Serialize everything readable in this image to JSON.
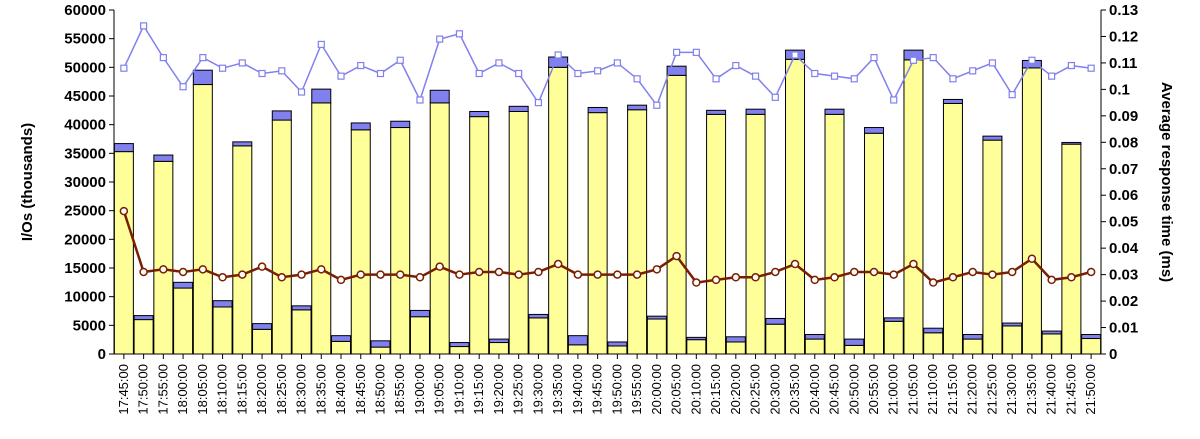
{
  "chart_data": {
    "type": "bar",
    "title": "",
    "xlabel": "",
    "ylabel": "I/Os (thousands)",
    "y2label": "Average response time (ms)",
    "ylim": [
      0,
      60000
    ],
    "y2lim": [
      0,
      0.13
    ],
    "yticks": [
      0,
      5000,
      10000,
      15000,
      20000,
      25000,
      30000,
      35000,
      40000,
      45000,
      50000,
      55000,
      60000
    ],
    "y2ticks": [
      0,
      0.01,
      0.02,
      0.03,
      0.04,
      0.05,
      0.06,
      0.07,
      0.08,
      0.09,
      0.1,
      0.11,
      0.12,
      0.13
    ],
    "grid": false,
    "legend": "none",
    "categories": [
      "17:45:00",
      "17:50:00",
      "17:55:00",
      "18:00:00",
      "18:05:00",
      "18:10:00",
      "18:15:00",
      "18:20:00",
      "18:25:00",
      "18:30:00",
      "18:35:00",
      "18:40:00",
      "18:45:00",
      "18:50:00",
      "18:55:00",
      "19:00:00",
      "19:05:00",
      "19:10:00",
      "19:15:00",
      "19:20:00",
      "19:25:00",
      "19:30:00",
      "19:35:00",
      "19:40:00",
      "19:45:00",
      "19:50:00",
      "19:55:00",
      "20:00:00",
      "20:05:00",
      "20:10:00",
      "20:15:00",
      "20:20:00",
      "20:25:00",
      "20:30:00",
      "20:35:00",
      "20:40:00",
      "20:45:00",
      "20:50:00",
      "20:55:00",
      "21:00:00",
      "21:05:00",
      "21:10:00",
      "21:15:00",
      "21:20:00",
      "21:25:00",
      "21:30:00",
      "21:35:00",
      "21:40:00",
      "21:45:00",
      "21:50:00"
    ],
    "series": [
      {
        "kind": "bar",
        "axis": "left",
        "color": "#ffff99",
        "values": [
          35300,
          6000,
          33600,
          11500,
          47000,
          8200,
          36300,
          4300,
          40800,
          7700,
          43800,
          2200,
          39100,
          1200,
          39500,
          6500,
          43800,
          1300,
          41400,
          2000,
          42300,
          6300,
          50000,
          1600,
          42100,
          1400,
          42600,
          6100,
          48600,
          2500,
          41800,
          2100,
          41800,
          5200,
          51400,
          2600,
          41800,
          1500,
          38500,
          5700,
          51300,
          3700,
          43700,
          2600,
          37300,
          4900,
          49900,
          3500,
          36600,
          2700
        ]
      },
      {
        "kind": "bar-stack",
        "axis": "left",
        "color": "#8080ee",
        "values": [
          1400,
          700,
          1100,
          1000,
          2500,
          1100,
          700,
          1000,
          1600,
          700,
          2400,
          1000,
          1200,
          1100,
          1100,
          1100,
          2200,
          700,
          900,
          600,
          900,
          600,
          1800,
          1600,
          900,
          700,
          800,
          500,
          1600,
          400,
          700,
          900,
          900,
          1000,
          1600,
          800,
          900,
          1100,
          1000,
          600,
          1700,
          800,
          700,
          800,
          700,
          500,
          1300,
          500,
          300,
          700
        ]
      },
      {
        "kind": "line",
        "axis": "right",
        "color": "#8080ee",
        "marker": "square",
        "values": [
          0.108,
          0.124,
          0.112,
          0.101,
          0.112,
          0.108,
          0.11,
          0.106,
          0.107,
          0.099,
          0.117,
          0.105,
          0.109,
          0.106,
          0.111,
          0.096,
          0.119,
          0.121,
          0.106,
          0.11,
          0.106,
          0.095,
          0.113,
          0.106,
          0.107,
          0.11,
          0.104,
          0.094,
          0.114,
          0.114,
          0.104,
          0.109,
          0.105,
          0.097,
          0.113,
          0.106,
          0.105,
          0.104,
          0.112,
          0.096,
          0.111,
          0.112,
          0.104,
          0.107,
          0.11,
          0.098,
          0.111,
          0.105,
          0.109,
          0.108
        ]
      },
      {
        "kind": "line",
        "axis": "right",
        "color": "#7a1e00",
        "marker": "circle",
        "values": [
          0.054,
          0.031,
          0.032,
          0.031,
          0.032,
          0.029,
          0.03,
          0.033,
          0.029,
          0.03,
          0.032,
          0.028,
          0.03,
          0.03,
          0.03,
          0.029,
          0.033,
          0.03,
          0.031,
          0.031,
          0.03,
          0.031,
          0.034,
          0.03,
          0.03,
          0.03,
          0.03,
          0.032,
          0.037,
          0.027,
          0.028,
          0.029,
          0.029,
          0.031,
          0.034,
          0.028,
          0.029,
          0.031,
          0.031,
          0.03,
          0.034,
          0.027,
          0.029,
          0.031,
          0.03,
          0.031,
          0.036,
          0.028,
          0.029,
          0.031
        ]
      }
    ]
  }
}
